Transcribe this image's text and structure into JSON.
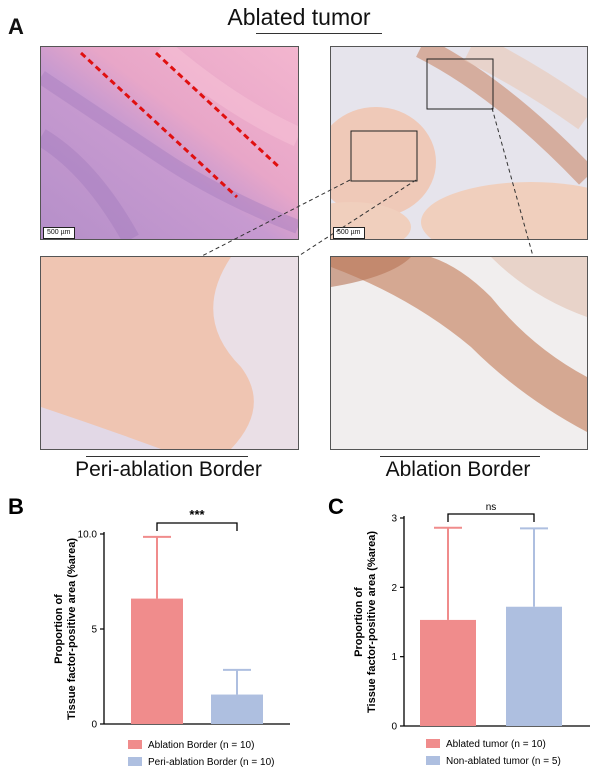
{
  "panel_a": {
    "letter": "A",
    "title": "Ablated tumor",
    "scale_left": "500 µm",
    "scale_right": "500 µm",
    "caption_left": "Peri-ablation Border",
    "caption_right": "Ablation Border"
  },
  "chart_data": [
    {
      "panel": "B",
      "type": "bar",
      "categories": [
        "Ablation Border (n = 10)",
        "Peri-ablation Border (n = 10)"
      ],
      "values": [
        6.6,
        1.55
      ],
      "errors_up": [
        3.25,
        1.3
      ],
      "colors": [
        "#f08c8c",
        "#aebfe0"
      ],
      "ylabel_line1": "Proportion of",
      "ylabel_line2": "Tissue factor-positive area (%area)",
      "ylim": [
        0,
        10
      ],
      "yticks": [
        "0",
        "5",
        "10.0"
      ],
      "significance": "***",
      "legend": [
        "Ablation Border (n = 10)",
        "Peri-ablation Border (n = 10)"
      ],
      "legend_position": "bottom"
    },
    {
      "panel": "C",
      "type": "bar",
      "categories": [
        "Ablated tumor (n = 10)",
        "Non-ablated  tumor (n = 5)"
      ],
      "values": [
        1.53,
        1.72
      ],
      "errors_up": [
        1.33,
        1.13
      ],
      "colors": [
        "#f08c8c",
        "#aebfe0"
      ],
      "ylabel_line1": "Proportion of",
      "ylabel_line2": "Tissue factor-positive area (%area)",
      "ylim": [
        0,
        3
      ],
      "yticks": [
        "0",
        "1",
        "2",
        "3"
      ],
      "significance": "ns",
      "legend": [
        "Ablated tumor (n = 10)",
        "Non-ablated  tumor (n = 5)"
      ],
      "legend_position": "bottom"
    }
  ]
}
